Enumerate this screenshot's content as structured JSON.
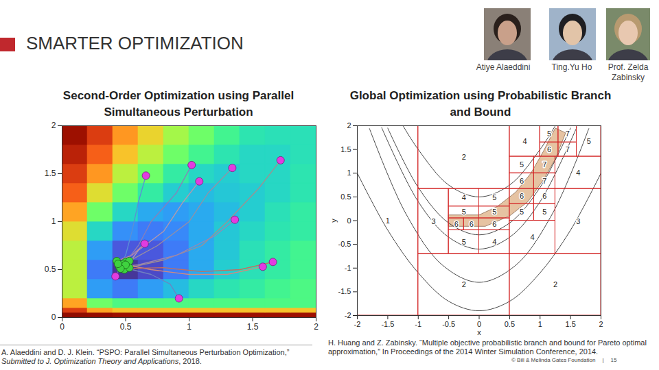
{
  "slide": {
    "title": "SMARTER OPTIMIZATION",
    "people": [
      "Atiye Alaeddini",
      "Ting.Yu Ho",
      "Prof. Zelda Zabinsky"
    ],
    "citations": [
      [
        {
          "text": "A. Alaeddini and D. J. Klein. “PSPO: Parallel Simultaneous Perturbation Optimization,” ",
          "italic": false
        },
        {
          "text": "Submitted to J. Optimization Theory and Applications",
          "italic": true
        },
        {
          "text": ", 2018.",
          "italic": false
        }
      ],
      [
        {
          "text": "H. Huang and Z. Zabinsky. “Multiple objective probabilistic branch and bound for Pareto optimal approximation,” In Proceedings of the 2014 Winter Simulation Conference, 2014.",
          "italic": false
        }
      ]
    ],
    "footer": {
      "copyright": "© Bill & Melinda Gates Foundation",
      "separator": "|",
      "page": 15
    }
  },
  "chart_data": [
    {
      "type": "heatmap",
      "title": "Second-Order Optimization using Parallel Simultaneous Perturbation",
      "xlim": [
        0,
        2
      ],
      "ylim": [
        0,
        2
      ],
      "xticks": [
        0,
        0.5,
        1,
        1.5,
        2
      ],
      "yticks": [
        0,
        0.5,
        1,
        1.5,
        2
      ],
      "zlim": [
        0,
        1
      ],
      "x_edges": [
        0,
        0.2,
        0.4,
        0.6,
        0.8,
        1.0,
        1.2,
        1.4,
        1.6,
        1.8,
        2.0
      ],
      "y_edges": [
        0,
        0.05,
        0.1,
        0.2,
        0.4,
        0.6,
        0.8,
        1.0,
        1.2,
        1.4,
        1.6,
        1.8,
        2.0
      ],
      "cells": [
        [
          1.0,
          0.97,
          0.95,
          0.95,
          0.95,
          0.95,
          0.95,
          0.95,
          0.95,
          0.95
        ],
        [
          0.85,
          0.7,
          0.65,
          0.65,
          0.65,
          0.65,
          0.65,
          0.65,
          0.65,
          0.65
        ],
        [
          0.7,
          0.45,
          0.4,
          0.4,
          0.4,
          0.4,
          0.4,
          0.4,
          0.4,
          0.4
        ],
        [
          0.55,
          0.2,
          0.15,
          0.2,
          0.25,
          0.3,
          0.33,
          0.35,
          0.38,
          0.4
        ],
        [
          0.55,
          0.15,
          0.05,
          0.08,
          0.15,
          0.22,
          0.28,
          0.32,
          0.35,
          0.38
        ],
        [
          0.55,
          0.2,
          0.1,
          0.1,
          0.15,
          0.22,
          0.27,
          0.32,
          0.35,
          0.38
        ],
        [
          0.6,
          0.3,
          0.18,
          0.15,
          0.17,
          0.22,
          0.27,
          0.3,
          0.33,
          0.35
        ],
        [
          0.7,
          0.45,
          0.3,
          0.22,
          0.2,
          0.22,
          0.25,
          0.28,
          0.32,
          0.35
        ],
        [
          0.8,
          0.6,
          0.45,
          0.35,
          0.28,
          0.25,
          0.27,
          0.28,
          0.3,
          0.33
        ],
        [
          0.85,
          0.72,
          0.55,
          0.45,
          0.35,
          0.3,
          0.28,
          0.3,
          0.3,
          0.33
        ],
        [
          0.9,
          0.8,
          0.65,
          0.55,
          0.45,
          0.38,
          0.33,
          0.3,
          0.3,
          0.32
        ],
        [
          0.95,
          0.85,
          0.72,
          0.62,
          0.52,
          0.45,
          0.38,
          0.33,
          0.32,
          0.32
        ]
      ],
      "series": [
        {
          "color": "#5b8fd6",
          "x": [
            0.66,
            0.6,
            0.55,
            0.5,
            0.46
          ],
          "y": [
            1.48,
            1.2,
            0.9,
            0.65,
            0.55
          ]
        },
        {
          "color": "#8a7fb8",
          "x": [
            1.02,
            0.9,
            0.7,
            0.6,
            0.5
          ],
          "y": [
            1.59,
            1.3,
            1.0,
            0.75,
            0.58
          ]
        },
        {
          "color": "#b89aa8",
          "x": [
            1.08,
            0.95,
            0.8,
            0.6,
            0.49
          ],
          "y": [
            1.42,
            1.2,
            0.9,
            0.7,
            0.5
          ]
        },
        {
          "color": "#9a8fa0",
          "x": [
            1.34,
            1.15,
            1.0,
            0.75,
            0.53
          ],
          "y": [
            1.56,
            1.3,
            1.0,
            0.75,
            0.59
          ]
        },
        {
          "color": "#a09090",
          "x": [
            1.72,
            1.55,
            1.3,
            1.1,
            0.8,
            0.53
          ],
          "y": [
            1.64,
            1.35,
            1.0,
            0.75,
            0.6,
            0.52
          ]
        },
        {
          "color": "#9c86b0",
          "x": [
            1.36,
            1.2,
            0.9,
            0.6,
            0.45
          ],
          "y": [
            1.02,
            0.85,
            0.65,
            0.55,
            0.53
          ]
        },
        {
          "color": "#c48aa0",
          "x": [
            0.65,
            0.55,
            0.43
          ],
          "y": [
            0.77,
            0.65,
            0.59
          ]
        },
        {
          "color": "#6a70c8",
          "x": [
            0.42,
            0.45,
            0.48
          ],
          "y": [
            0.43,
            0.5,
            0.56
          ]
        },
        {
          "color": "#d08a80",
          "x": [
            1.58,
            1.3,
            1.0,
            0.7,
            0.5
          ],
          "y": [
            0.53,
            0.45,
            0.45,
            0.5,
            0.55
          ]
        },
        {
          "color": "#c07060",
          "x": [
            1.66,
            1.4,
            1.1,
            0.8,
            0.46
          ],
          "y": [
            0.58,
            0.5,
            0.48,
            0.52,
            0.51
          ]
        },
        {
          "color": "#7080c0",
          "x": [
            0.92,
            0.85,
            0.7,
            0.55,
            0.44
          ],
          "y": [
            0.2,
            0.35,
            0.45,
            0.5,
            0.56
          ]
        }
      ]
    },
    {
      "type": "contour",
      "title": "Global Optimization using Probabilistic Branch and Bound",
      "xlabel": "x",
      "ylabel": "y",
      "xlim": [
        -2,
        2
      ],
      "ylim": [
        -2,
        2
      ],
      "xticks": [
        -2,
        -1.5,
        -1,
        -0.5,
        0,
        0.5,
        1,
        1.5,
        2
      ],
      "yticks": [
        -2,
        -1.5,
        -1,
        -0.5,
        0,
        0.5,
        1,
        1.5,
        2
      ],
      "contours": [
        {
          "x": [
            -1.25,
            -1,
            -0.5,
            0,
            0.5,
            1,
            1.25
          ],
          "y": [
            2.0,
            1.5,
            0.75,
            0.5,
            0.75,
            1.5,
            2.0
          ]
        },
        {
          "x": [
            -1.5,
            -1,
            -0.5,
            0,
            0.5,
            1,
            1.5
          ],
          "y": [
            1.95,
            0.7,
            -0.05,
            -0.3,
            -0.05,
            0.7,
            1.95
          ]
        },
        {
          "x": [
            -1.6,
            -1,
            -0.5,
            0,
            0.5,
            1,
            1.6
          ],
          "y": [
            1.96,
            0.4,
            -0.35,
            -0.6,
            -0.35,
            0.4,
            1.96
          ]
        },
        {
          "x": [
            -1.8,
            -1.2,
            -0.6,
            0,
            0.6,
            1.2,
            1.8
          ],
          "y": [
            1.94,
            0.14,
            -0.94,
            -1.3,
            -0.94,
            0.14,
            1.94
          ]
        },
        {
          "x": [
            -2,
            -1.5,
            -1,
            -0.5,
            0,
            0.5,
            1,
            1.5,
            2
          ],
          "y": [
            1.0,
            -0.2,
            -1.1,
            -1.7,
            -1.9,
            -1.7,
            -1.1,
            -0.2,
            1.0
          ]
        }
      ],
      "region": {
        "x": [
          -0.5,
          0.1,
          0.5,
          0.8,
          1.05,
          1.25,
          1.42,
          1.25,
          1.05,
          0.85,
          0.6,
          0.3,
          0,
          -0.5
        ],
        "y": [
          -0.12,
          -0.12,
          0.1,
          0.4,
          0.85,
          1.3,
          1.85,
          1.95,
          1.45,
          1.0,
          0.6,
          0.3,
          0.12,
          0.12
        ]
      },
      "boxes": [
        {
          "x1": -2,
          "x2": -1,
          "y1": -2,
          "y2": 2,
          "label": 1
        },
        {
          "x1": -1,
          "x2": 0.5,
          "y1": 0.67,
          "y2": 2,
          "label": 2
        },
        {
          "x1": -1,
          "x2": 0.5,
          "y1": -2,
          "y2": -0.7,
          "label": 2
        },
        {
          "x1": 0.5,
          "x2": 2,
          "y1": -2,
          "y2": -0.7,
          "label": 2
        },
        {
          "x1": -1,
          "x2": -0.5,
          "y1": -0.7,
          "y2": 0.67,
          "label": 3
        },
        {
          "x1": 1.25,
          "x2": 2,
          "y1": -0.7,
          "y2": 0.67,
          "label": 3
        },
        {
          "x1": -0.5,
          "x2": 0,
          "y1": 0.3,
          "y2": 0.67,
          "label": 4
        },
        {
          "x1": 0,
          "x2": 0.5,
          "y1": -0.7,
          "y2": -0.2,
          "label": 4
        },
        {
          "x1": 0.5,
          "x2": 1.25,
          "y1": -0.7,
          "y2": 0,
          "label": 4
        },
        {
          "x1": 1.25,
          "x2": 2,
          "y1": 0.67,
          "y2": 1.35,
          "label": 4
        },
        {
          "x1": 0.5,
          "x2": 1.0,
          "y1": 1.35,
          "y2": 2,
          "label": 4
        },
        {
          "x1": 1.6,
          "x2": 2,
          "y1": 1.35,
          "y2": 2,
          "label": 5
        },
        {
          "x1": -0.5,
          "x2": 0,
          "y1": -0.7,
          "y2": -0.2,
          "label": 5
        },
        {
          "x1": -0.5,
          "x2": -0.25,
          "y1": -0.2,
          "y2": 0.05,
          "label": 6
        },
        {
          "x1": -0.25,
          "x2": 0,
          "y1": -0.2,
          "y2": 0.05,
          "label": 6
        },
        {
          "x1": -0.5,
          "x2": 0,
          "y1": 0.05,
          "y2": 0.3,
          "label": 5
        },
        {
          "x1": 0,
          "x2": 0.5,
          "y1": -0.2,
          "y2": 0.05,
          "label": 6
        },
        {
          "x1": 0,
          "x2": 0.5,
          "y1": 0.05,
          "y2": 0.3,
          "label": 5
        },
        {
          "x1": 0,
          "x2": 0.5,
          "y1": 0.3,
          "y2": 0.67,
          "label": 5
        },
        {
          "x1": 0.5,
          "x2": 0.9,
          "y1": 0,
          "y2": 0.35,
          "label": 5
        },
        {
          "x1": 0.9,
          "x2": 1.25,
          "y1": 0,
          "y2": 0.35,
          "label": 5
        },
        {
          "x1": 0.5,
          "x2": 0.9,
          "y1": 0.35,
          "y2": 0.67,
          "label": 6
        },
        {
          "x1": 0.9,
          "x2": 1.25,
          "y1": 0.35,
          "y2": 0.67,
          "label": 6
        },
        {
          "x1": 0.5,
          "x2": 0.9,
          "y1": 0.67,
          "y2": 1.0,
          "label": 6
        },
        {
          "x1": 0.9,
          "x2": 1.25,
          "y1": 0.67,
          "y2": 1.0,
          "label": 7
        },
        {
          "x1": 0.5,
          "x2": 0.9,
          "y1": 1.0,
          "y2": 1.35,
          "label": 5
        },
        {
          "x1": 0.9,
          "x2": 1.25,
          "y1": 1.0,
          "y2": 1.35,
          "label": 7
        },
        {
          "x1": 1.0,
          "x2": 1.3,
          "y1": 1.35,
          "y2": 1.65,
          "label": 6
        },
        {
          "x1": 1.3,
          "x2": 1.6,
          "y1": 1.35,
          "y2": 1.65,
          "label": 7
        },
        {
          "x1": 1.0,
          "x2": 1.3,
          "y1": 1.65,
          "y2": 2,
          "label": 5
        },
        {
          "x1": 1.3,
          "x2": 1.6,
          "y1": 1.65,
          "y2": 2,
          "label": 7
        }
      ]
    }
  ]
}
